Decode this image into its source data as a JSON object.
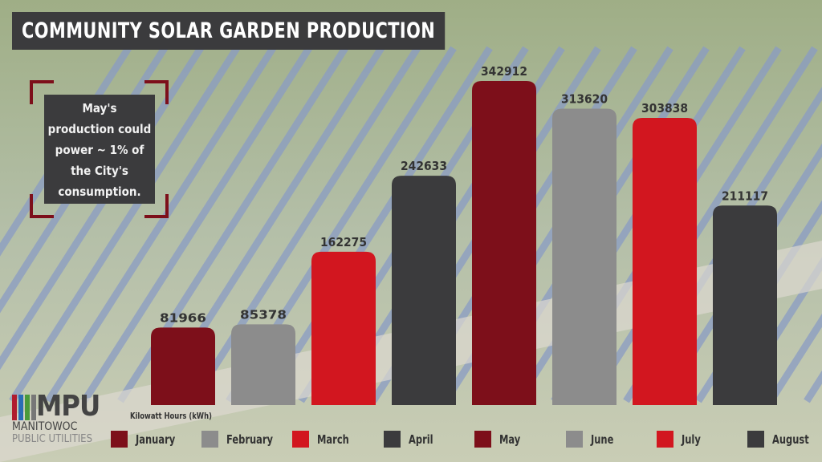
{
  "title": "COMMUNITY SOLAR GARDEN PRODUCTION",
  "callout": {
    "lines": [
      "May's",
      "production could",
      "power ~ 1% of",
      "the City's",
      "consumption."
    ]
  },
  "logo": {
    "mark": "MPU",
    "line1": "MANITOWOC",
    "line2": "PUBLIC UTILITIES"
  },
  "chart_data": {
    "type": "bar",
    "title": "COMMUNITY SOLAR GARDEN PRODUCTION",
    "ylabel": "Kilowatt Hours (kWh)",
    "categories": [
      "January",
      "February",
      "March",
      "April",
      "May",
      "June",
      "July",
      "August"
    ],
    "values": [
      81966,
      85378,
      162275,
      242633,
      342912,
      313620,
      303838,
      211117
    ],
    "colors": [
      "#7d0f1a",
      "#8c8c8c",
      "#d2161f",
      "#3b3b3d",
      "#7d0f1a",
      "#8c8c8c",
      "#d2161f",
      "#3b3b3d"
    ],
    "legend": "bottom",
    "grid": false
  }
}
